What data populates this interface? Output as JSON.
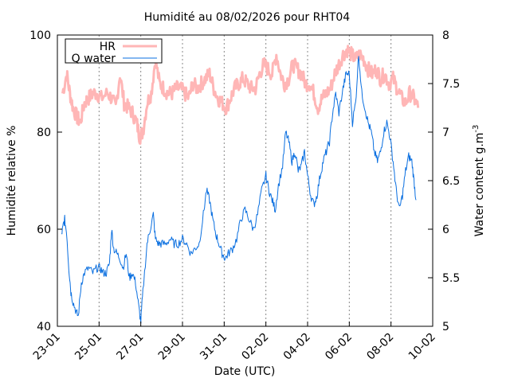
{
  "chart_data": {
    "type": "line",
    "title": "Humidité au 08/02/2026 pour RHT04",
    "xlabel": "Date (UTC)",
    "ylabel": "Humidité relative %",
    "y2label_main": "Water content g.m",
    "y2label_sup": "-3",
    "x_unit": "day",
    "xlim": [
      0,
      17
    ],
    "ylim": [
      40,
      100
    ],
    "y2lim": [
      5,
      8
    ],
    "x_ticks": [
      {
        "x": 0,
        "label": "23-01"
      },
      {
        "x": 2,
        "label": "25-01"
      },
      {
        "x": 4,
        "label": "27-01"
      },
      {
        "x": 6,
        "label": "29-01"
      },
      {
        "x": 8,
        "label": "31-01"
      },
      {
        "x": 10,
        "label": "02-02"
      },
      {
        "x": 12,
        "label": "04-02"
      },
      {
        "x": 14,
        "label": "06-02"
      },
      {
        "x": 16,
        "label": "08-02"
      },
      {
        "x": 18,
        "label": "10-02"
      }
    ],
    "y_ticks": [
      40,
      60,
      80,
      100
    ],
    "y2_ticks": [
      {
        "v": 5,
        "label": "5"
      },
      {
        "v": 5.5,
        "label": "5.5"
      },
      {
        "v": 6,
        "label": "6"
      },
      {
        "v": 6.5,
        "label": "6.5"
      },
      {
        "v": 7,
        "label": "7"
      },
      {
        "v": 7.5,
        "label": "7.5"
      },
      {
        "v": 8,
        "label": "8"
      }
    ],
    "grid": "vertical dashed at x ticks",
    "legend_position": "top-left",
    "series": [
      {
        "name": "HR",
        "axis": "left",
        "color": "#ffb6b6",
        "style": "thick noisy band",
        "points": [
          [
            0.25,
            88
          ],
          [
            0.45,
            92
          ],
          [
            0.6,
            88
          ],
          [
            0.75,
            85
          ],
          [
            0.95,
            83
          ],
          [
            1.1,
            82
          ],
          [
            1.3,
            86
          ],
          [
            1.5,
            87
          ],
          [
            1.7,
            88
          ],
          [
            1.9,
            88
          ],
          [
            2.1,
            87
          ],
          [
            2.4,
            88
          ],
          [
            2.6,
            87
          ],
          [
            2.8,
            85
          ],
          [
            3.0,
            92
          ],
          [
            3.2,
            86
          ],
          [
            3.4,
            85
          ],
          [
            3.6,
            84
          ],
          [
            3.8,
            82
          ],
          [
            3.95,
            79
          ],
          [
            4.1,
            80
          ],
          [
            4.3,
            86
          ],
          [
            4.5,
            88
          ],
          [
            4.7,
            95
          ],
          [
            4.9,
            90
          ],
          [
            5.1,
            89
          ],
          [
            5.3,
            88
          ],
          [
            5.5,
            88
          ],
          [
            5.7,
            89
          ],
          [
            5.9,
            89
          ],
          [
            6.1,
            88
          ],
          [
            6.3,
            87
          ],
          [
            6.5,
            90
          ],
          [
            6.7,
            89
          ],
          [
            6.9,
            90
          ],
          [
            7.1,
            91
          ],
          [
            7.3,
            92
          ],
          [
            7.5,
            89
          ],
          [
            7.7,
            87
          ],
          [
            7.9,
            86
          ],
          [
            8.1,
            85
          ],
          [
            8.3,
            87
          ],
          [
            8.5,
            89
          ],
          [
            8.7,
            90
          ],
          [
            8.9,
            91
          ],
          [
            9.1,
            90
          ],
          [
            9.3,
            89
          ],
          [
            9.5,
            89
          ],
          [
            9.7,
            92
          ],
          [
            9.9,
            94
          ],
          [
            10.1,
            93
          ],
          [
            10.3,
            92
          ],
          [
            10.5,
            96
          ],
          [
            10.7,
            92
          ],
          [
            10.9,
            90
          ],
          [
            11.1,
            91
          ],
          [
            11.3,
            94
          ],
          [
            11.5,
            93
          ],
          [
            11.7,
            92
          ],
          [
            11.9,
            90
          ],
          [
            12.1,
            90
          ],
          [
            12.3,
            88
          ],
          [
            12.5,
            85
          ],
          [
            12.7,
            87
          ],
          [
            12.9,
            88
          ],
          [
            13.1,
            89
          ],
          [
            13.3,
            92
          ],
          [
            13.5,
            94
          ],
          [
            13.7,
            96
          ],
          [
            13.9,
            97
          ],
          [
            14.1,
            96
          ],
          [
            14.3,
            95
          ],
          [
            14.5,
            96
          ],
          [
            14.7,
            95
          ],
          [
            14.9,
            93
          ],
          [
            15.1,
            92
          ],
          [
            15.3,
            93
          ],
          [
            15.5,
            91
          ],
          [
            15.7,
            92
          ],
          [
            15.9,
            90
          ],
          [
            16.1,
            91
          ],
          [
            16.3,
            89
          ],
          [
            16.5,
            87
          ],
          [
            16.7,
            86
          ],
          [
            16.9,
            88
          ],
          [
            17.1,
            87
          ],
          [
            17.3,
            85
          ]
        ]
      },
      {
        "name": "Q water",
        "axis": "right",
        "color": "#0a6fe0",
        "style": "thin noisy line",
        "points": [
          [
            0.2,
            5.95
          ],
          [
            0.3,
            6.05
          ],
          [
            0.35,
            6.1
          ],
          [
            0.45,
            5.95
          ],
          [
            0.55,
            5.6
          ],
          [
            0.65,
            5.35
          ],
          [
            0.75,
            5.25
          ],
          [
            0.9,
            5.15
          ],
          [
            1.0,
            5.1
          ],
          [
            1.15,
            5.45
          ],
          [
            1.3,
            5.55
          ],
          [
            1.5,
            5.6
          ],
          [
            1.7,
            5.55
          ],
          [
            1.9,
            5.6
          ],
          [
            2.05,
            5.6
          ],
          [
            2.2,
            5.55
          ],
          [
            2.35,
            5.55
          ],
          [
            2.5,
            5.65
          ],
          [
            2.6,
            6.0
          ],
          [
            2.7,
            5.8
          ],
          [
            2.85,
            5.75
          ],
          [
            3.0,
            5.7
          ],
          [
            3.15,
            5.6
          ],
          [
            3.3,
            5.75
          ],
          [
            3.45,
            5.5
          ],
          [
            3.6,
            5.55
          ],
          [
            3.75,
            5.45
          ],
          [
            3.9,
            5.2
          ],
          [
            4.0,
            5.05
          ],
          [
            4.1,
            5.35
          ],
          [
            4.3,
            5.85
          ],
          [
            4.45,
            6.0
          ],
          [
            4.6,
            6.15
          ],
          [
            4.7,
            5.9
          ],
          [
            4.85,
            5.85
          ],
          [
            5.0,
            5.85
          ],
          [
            5.2,
            5.85
          ],
          [
            5.4,
            5.9
          ],
          [
            5.6,
            5.85
          ],
          [
            5.8,
            5.85
          ],
          [
            6.0,
            5.9
          ],
          [
            6.2,
            5.85
          ],
          [
            6.4,
            5.75
          ],
          [
            6.6,
            5.8
          ],
          [
            6.8,
            5.85
          ],
          [
            7.0,
            6.15
          ],
          [
            7.15,
            6.4
          ],
          [
            7.3,
            6.3
          ],
          [
            7.45,
            6.1
          ],
          [
            7.6,
            5.95
          ],
          [
            7.75,
            5.85
          ],
          [
            7.9,
            5.75
          ],
          [
            8.05,
            5.7
          ],
          [
            8.2,
            5.75
          ],
          [
            8.4,
            5.8
          ],
          [
            8.6,
            5.9
          ],
          [
            8.8,
            6.1
          ],
          [
            9.0,
            6.2
          ],
          [
            9.2,
            6.1
          ],
          [
            9.4,
            6.0
          ],
          [
            9.6,
            6.15
          ],
          [
            9.8,
            6.4
          ],
          [
            10.0,
            6.55
          ],
          [
            10.15,
            6.4
          ],
          [
            10.3,
            6.3
          ],
          [
            10.45,
            6.2
          ],
          [
            10.6,
            6.45
          ],
          [
            10.8,
            6.65
          ],
          [
            10.95,
            7.0
          ],
          [
            11.1,
            6.9
          ],
          [
            11.25,
            6.7
          ],
          [
            11.4,
            6.8
          ],
          [
            11.55,
            6.6
          ],
          [
            11.7,
            6.65
          ],
          [
            11.85,
            6.8
          ],
          [
            12.0,
            6.55
          ],
          [
            12.15,
            6.35
          ],
          [
            12.3,
            6.25
          ],
          [
            12.45,
            6.35
          ],
          [
            12.6,
            6.55
          ],
          [
            12.75,
            6.7
          ],
          [
            12.9,
            6.8
          ],
          [
            13.05,
            6.9
          ],
          [
            13.2,
            7.2
          ],
          [
            13.35,
            7.4
          ],
          [
            13.5,
            7.2
          ],
          [
            13.7,
            7.45
          ],
          [
            13.85,
            7.6
          ],
          [
            14.0,
            7.6
          ],
          [
            14.15,
            7.1
          ],
          [
            14.3,
            7.3
          ],
          [
            14.45,
            7.8
          ],
          [
            14.6,
            7.4
          ],
          [
            14.75,
            7.25
          ],
          [
            14.9,
            7.1
          ],
          [
            15.05,
            7.0
          ],
          [
            15.2,
            6.8
          ],
          [
            15.35,
            6.7
          ],
          [
            15.5,
            6.8
          ],
          [
            15.65,
            7.0
          ],
          [
            15.8,
            7.1
          ],
          [
            15.95,
            6.95
          ],
          [
            16.1,
            6.7
          ],
          [
            16.25,
            6.4
          ],
          [
            16.4,
            6.2
          ],
          [
            16.55,
            6.35
          ],
          [
            16.7,
            6.6
          ],
          [
            16.85,
            6.75
          ],
          [
            17.0,
            6.7
          ],
          [
            17.1,
            6.5
          ],
          [
            17.2,
            6.3
          ]
        ]
      }
    ]
  }
}
